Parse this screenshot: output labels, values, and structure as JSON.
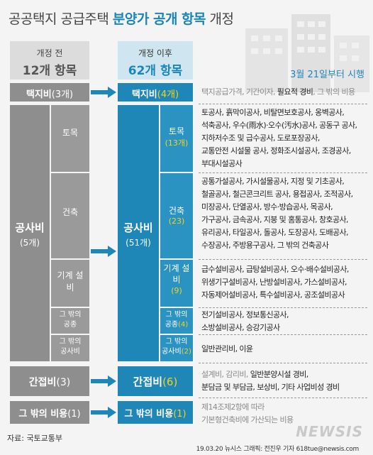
{
  "title": {
    "prefix": "공공택지 공급주택 ",
    "highlight": "분양가 공개 항목",
    "suffix": " 개정"
  },
  "before": {
    "label": "개정 전",
    "count": "12개 항목"
  },
  "after": {
    "label": "개정 이후",
    "count": "62개 항목"
  },
  "effective": "3월 21일부터 시행",
  "rows": {
    "land": {
      "before": "택지비",
      "before_n": "(3개)",
      "after": "택지비",
      "after_n": "(4개)",
      "desc_pre": "택지공급가격, 기간이자, ",
      "desc_bold": "필요적 경비",
      "desc_post": ", 그 밖의 비용"
    },
    "construction": {
      "before": "공사비",
      "before_n": "(5개)",
      "after": "공사비",
      "after_n": "(51개)"
    },
    "indirect": {
      "before": "간접비",
      "before_n": "(3)",
      "after": "간접비",
      "after_n": "(6)"
    },
    "other": {
      "before": "그 밖의 비용",
      "before_n": "(1)",
      "after": "그 밖의 비용",
      "after_n": "(1)"
    }
  },
  "sub": {
    "earth": {
      "name": "토목",
      "after": "토목",
      "after_n": "(13개)"
    },
    "build": {
      "name": "건축",
      "after": "건축",
      "after_n": "(23)"
    },
    "mech": {
      "name": "기계 설비",
      "after": "기계 설비",
      "after_n": "(9)"
    },
    "pub": {
      "name": "그 밖의 공종",
      "after1": "그 밖의",
      "after2": "공종",
      "after_n": "(4)"
    },
    "misc": {
      "name": "그 밖의 공사비",
      "after1": "그 밖의",
      "after2": "공사비",
      "after_n": "(2)"
    }
  },
  "desc": {
    "earth": [
      "토공사, 흙막이공사, 비탈면보호공사, 옹벽공사,",
      "석축공사, 우수(雨水)·오수(汚水)공사, 공동구 공사,",
      "지하저수조 및 급수공사, 도로포장공사,",
      "교통안전 시설물 공사, 정화조시설공사, 조경공사,",
      "부대시설공사"
    ],
    "build": [
      "공통가설공사, 가시설물공사, 지정 및 기초공사,",
      "철골공사, 철근콘크리트 공사, 용접공사, 조적공사,",
      "미장공사, 단열공사, 방수·방습공사, 목공사,",
      "가구공사, 금속공사, 지붕 및 홈통공사, 창호공사,",
      "유리공사, 타일공사, 돌공사, 도장공사, 도배공사,",
      "수장공사, 주방용구공사, 그 밖의 건축공사"
    ],
    "mech": [
      "급수설비공사, 급탕설비공사, 오수·배수설비공사,",
      "위생기구설비공사, 난방설비공사, 가스설비공사,",
      "자동제어설비공사, 특수설비공사, 공조설비공사"
    ],
    "pub": [
      "전기설비공사, 정보통신공사,",
      "소방설비공사, 승강기공사"
    ],
    "misc": [
      "일반관리비, 이윤"
    ],
    "indirect_gray": "설계비, 감리비, ",
    "indirect_dark1": "일반분양시설 경비,",
    "indirect_dark2": "분담금 및 부담금, 보상비, 기타 사업비성 경비",
    "other": [
      "제14조제2항에 따라",
      "기본형건축비에 가산되는 비용"
    ]
  },
  "source": "자료: 국토교통부",
  "credit": "19.03.20  뉴시스 그래픽: 전진우 기자 618tue@newsis.com",
  "logo": "NEWSIS",
  "colors": {
    "gray": "#8e8e8e",
    "blue": "#1f86b8",
    "yellow": "#f4d21c"
  }
}
